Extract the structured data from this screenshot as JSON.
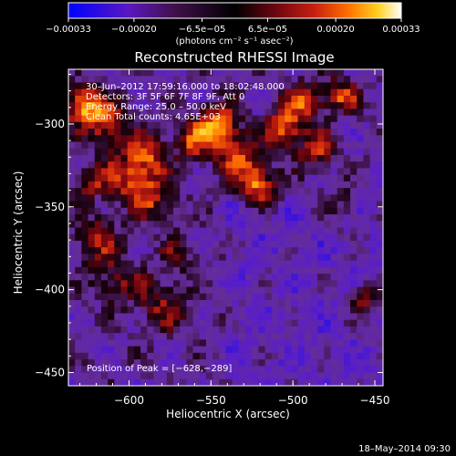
{
  "chart_data": {
    "type": "heatmap",
    "title": "Reconstructed RHESSI Image",
    "xlabel": "Heliocentric X (arcsec)",
    "ylabel": "Heliocentric Y (arcsec)",
    "xlim": [
      -637,
      -445
    ],
    "ylim": [
      -458,
      -267
    ],
    "x_ticks": [
      -600,
      -550,
      -500,
      -450
    ],
    "y_ticks": [
      -300,
      -350,
      -400,
      -450
    ],
    "x_tick_labels": [
      "−600",
      "−550",
      "−500",
      "−450"
    ],
    "y_tick_labels": [
      "−300",
      "−350",
      "−400",
      "−450"
    ],
    "colorbar": {
      "min": -0.00033,
      "max": 0.00033,
      "tick_values": [
        -0.00033,
        -0.0002,
        -6.5e-05,
        6.5e-05,
        0.0002,
        0.00033
      ],
      "tick_labels": [
        "−0.00033",
        "−0.00020",
        "−6.5e−05",
        "6.5e−05",
        "0.00020",
        "0.00033"
      ],
      "unit_label": "(photons cm⁻² s⁻¹ asec⁻²)",
      "colors": [
        "#0000ff",
        "#6a1aa8",
        "#3a0820",
        "#000000",
        "#7a0a10",
        "#d02010",
        "#ff6a00",
        "#ffcc10",
        "#ffffff"
      ]
    },
    "annotations": [
      "30–Jun–2012 17:59:16.000 to 18:02:48.000",
      "Detectors: 3F 5F 6F 7F 8F 9F, Att 0",
      "Energy Range: 25.0 – 50.0 keV",
      "Clean      Total counts: 4.65E+03"
    ],
    "peak_label": "Position of Peak = [−628,−289]",
    "peak": {
      "x": -628,
      "y": -289
    },
    "grid": false,
    "colormap": "red-temperature with purple-blue negatives"
  },
  "footer": {
    "timestamp": "18–May–2014 09:30"
  }
}
